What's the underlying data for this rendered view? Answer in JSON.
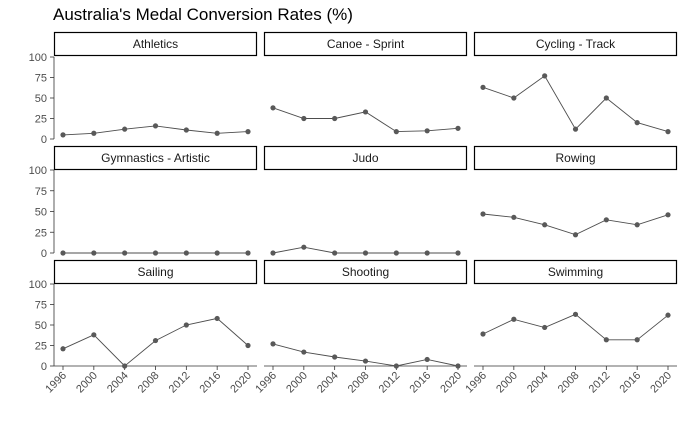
{
  "chart_data": {
    "type": "line",
    "title": "Australia's Medal Conversion Rates (%)",
    "xlabel": "",
    "ylabel": "",
    "x": [
      1996,
      2000,
      2004,
      2008,
      2012,
      2016,
      2020
    ],
    "ylim": [
      0,
      100
    ],
    "yticks": [
      0,
      25,
      50,
      75,
      100
    ],
    "grid": false,
    "legend": "none",
    "facet_layout": {
      "columns": 3,
      "rows": 3
    },
    "panels": [
      {
        "name": "Athletics",
        "values": [
          5,
          7,
          12,
          16,
          11,
          7,
          9
        ]
      },
      {
        "name": "Canoe - Sprint",
        "values": [
          38,
          25,
          25,
          33,
          9,
          10,
          13
        ]
      },
      {
        "name": "Cycling - Track",
        "values": [
          63,
          50,
          77,
          12,
          50,
          20,
          9
        ]
      },
      {
        "name": "Gymnastics - Artistic",
        "values": [
          0,
          0,
          0,
          0,
          0,
          0,
          0
        ]
      },
      {
        "name": "Judo",
        "values": [
          0,
          7,
          0,
          0,
          0,
          0,
          0
        ]
      },
      {
        "name": "Rowing",
        "values": [
          47,
          43,
          34,
          22,
          40,
          34,
          46
        ]
      },
      {
        "name": "Sailing",
        "values": [
          21,
          38,
          0,
          31,
          50,
          58,
          25
        ]
      },
      {
        "name": "Shooting",
        "values": [
          27,
          17,
          11,
          6,
          0,
          8,
          0
        ]
      },
      {
        "name": "Swimming",
        "values": [
          39,
          57,
          47,
          63,
          32,
          32,
          62
        ]
      }
    ],
    "colors": {
      "line": "#4d4d4d",
      "point": "#595959",
      "strip_border": "#000000",
      "axis": "#333333"
    }
  }
}
